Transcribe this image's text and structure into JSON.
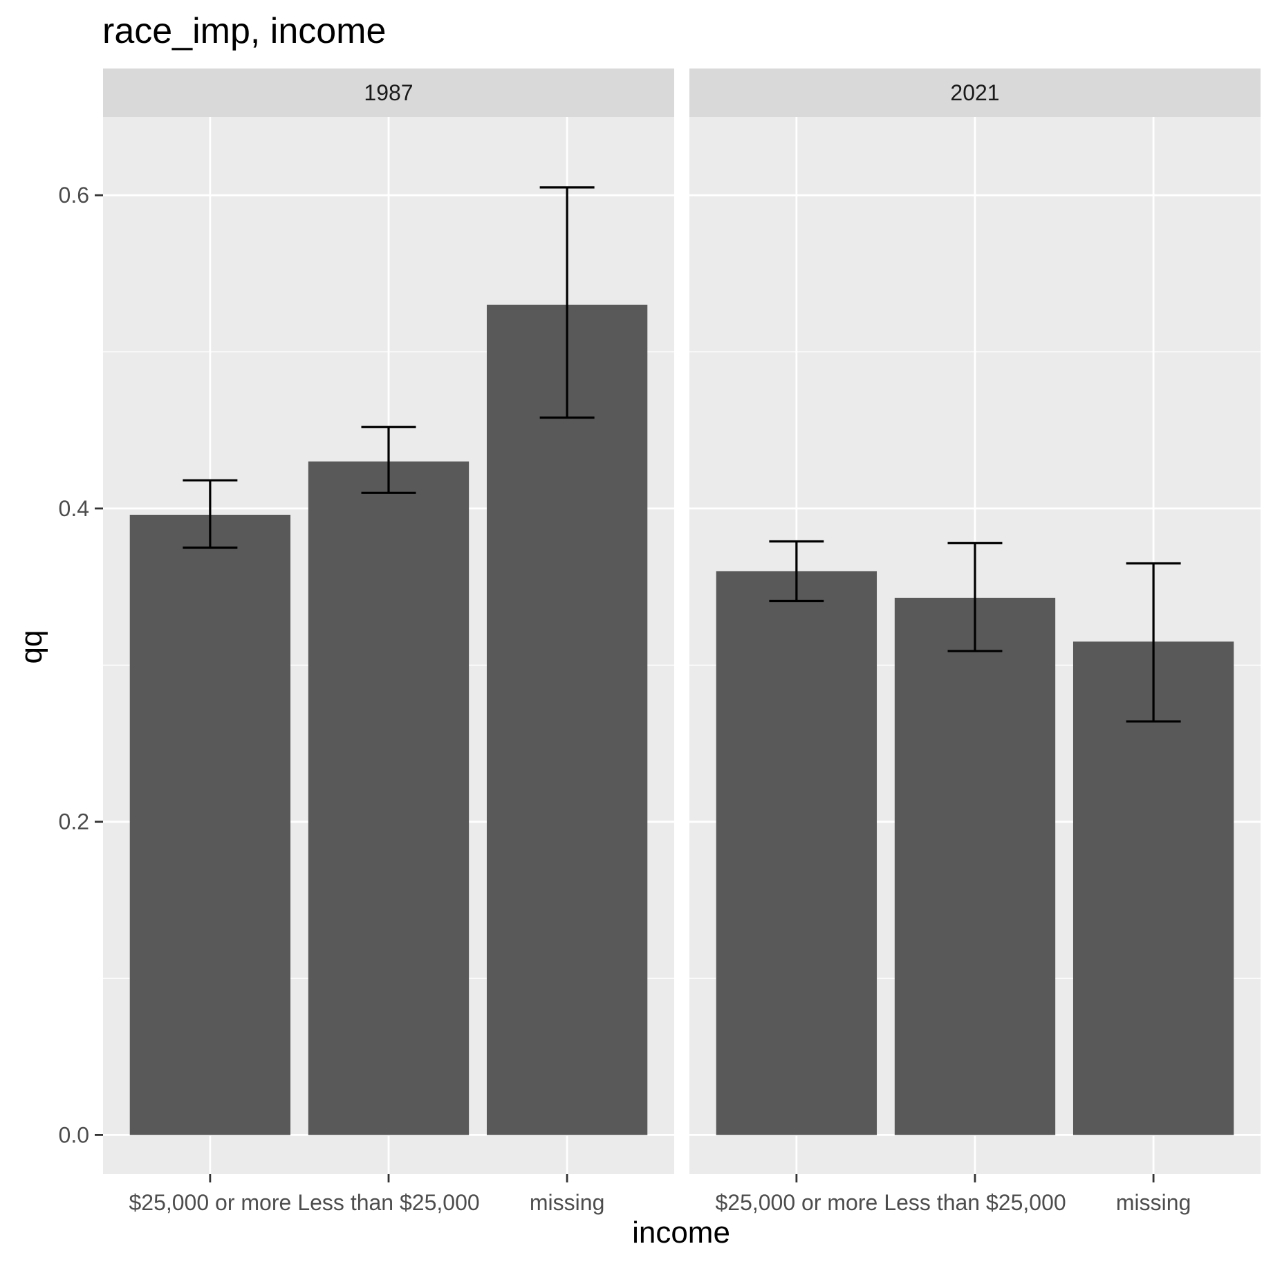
{
  "chart_data": {
    "type": "bar",
    "title": "race_imp, income",
    "xlabel": "income",
    "ylabel": "qq",
    "ylim": [
      -0.025,
      0.65
    ],
    "yticks": [
      0.0,
      0.2,
      0.4,
      0.6
    ],
    "ytick_labels": [
      "0.0",
      "0.2",
      "0.4",
      "0.6"
    ],
    "grid": true,
    "error_bars": true,
    "categories": [
      "$25,000 or more",
      "Less than $25,000",
      "missing"
    ],
    "panels": [
      {
        "facet": "1987",
        "values": [
          0.396,
          0.43,
          0.53
        ],
        "err_low": [
          0.375,
          0.41,
          0.458
        ],
        "err_high": [
          0.418,
          0.452,
          0.605
        ]
      },
      {
        "facet": "2021",
        "values": [
          0.36,
          0.343,
          0.315
        ],
        "err_low": [
          0.341,
          0.309,
          0.264
        ],
        "err_high": [
          0.379,
          0.378,
          0.365
        ]
      }
    ],
    "colors": {
      "bar": "#595959",
      "panel_bg": "#ebebeb",
      "strip_bg": "#d9d9d9",
      "grid": "#ffffff",
      "error_bar": "#000000"
    }
  }
}
